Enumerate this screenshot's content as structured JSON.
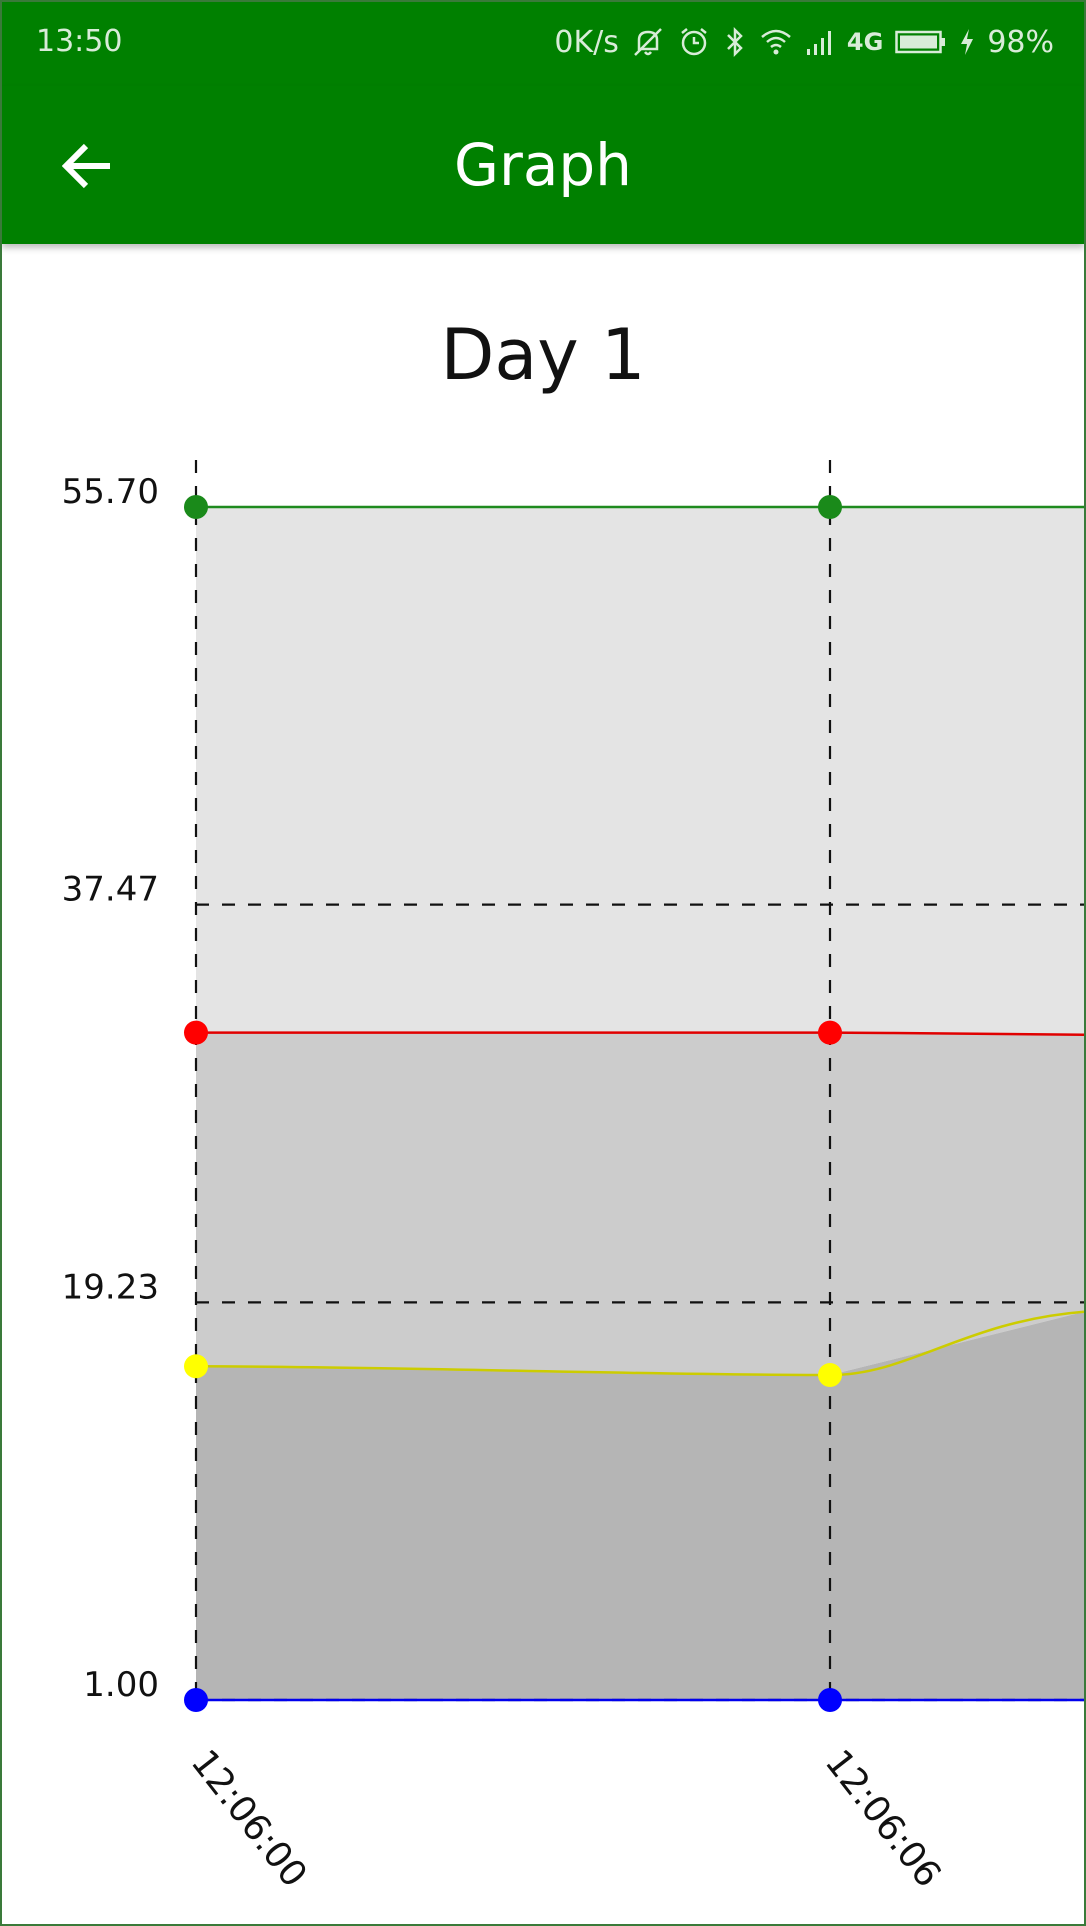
{
  "status_bar": {
    "time": "13:50",
    "net_speed": "0K/s",
    "network": "4G",
    "battery": "98%",
    "icons": [
      "mute-icon",
      "alarm-icon",
      "bluetooth-icon",
      "wifi-icon",
      "signal-icon",
      "battery-icon",
      "charging-icon"
    ]
  },
  "app_bar": {
    "title": "Graph",
    "back_icon": "arrow-left-icon",
    "color": "#008000"
  },
  "chart_data": {
    "type": "area",
    "title": "Day 1",
    "x": [
      "12:06:00",
      "12:06:06"
    ],
    "y_ticks": [
      "1.00",
      "19.23",
      "37.47",
      "55.70"
    ],
    "ylim": [
      1.0,
      55.7
    ],
    "grid": true,
    "series": [
      {
        "values": [
          55.7,
          55.7
        ],
        "color": "#1e8a1e",
        "fill": "#e4e4e4"
      },
      {
        "values": [
          31.6,
          31.6
        ],
        "color": "#e00000",
        "fill": "#cccccc"
      },
      {
        "values": [
          16.3,
          15.9
        ],
        "color": "#cccc00",
        "fill": "#b5b5b5"
      },
      {
        "values": [
          1.0,
          1.0
        ],
        "color": "#0000ee",
        "fill": "#ffffff"
      }
    ],
    "continuation_right": [
      55.7,
      31.5,
      18.8,
      1.0
    ]
  }
}
